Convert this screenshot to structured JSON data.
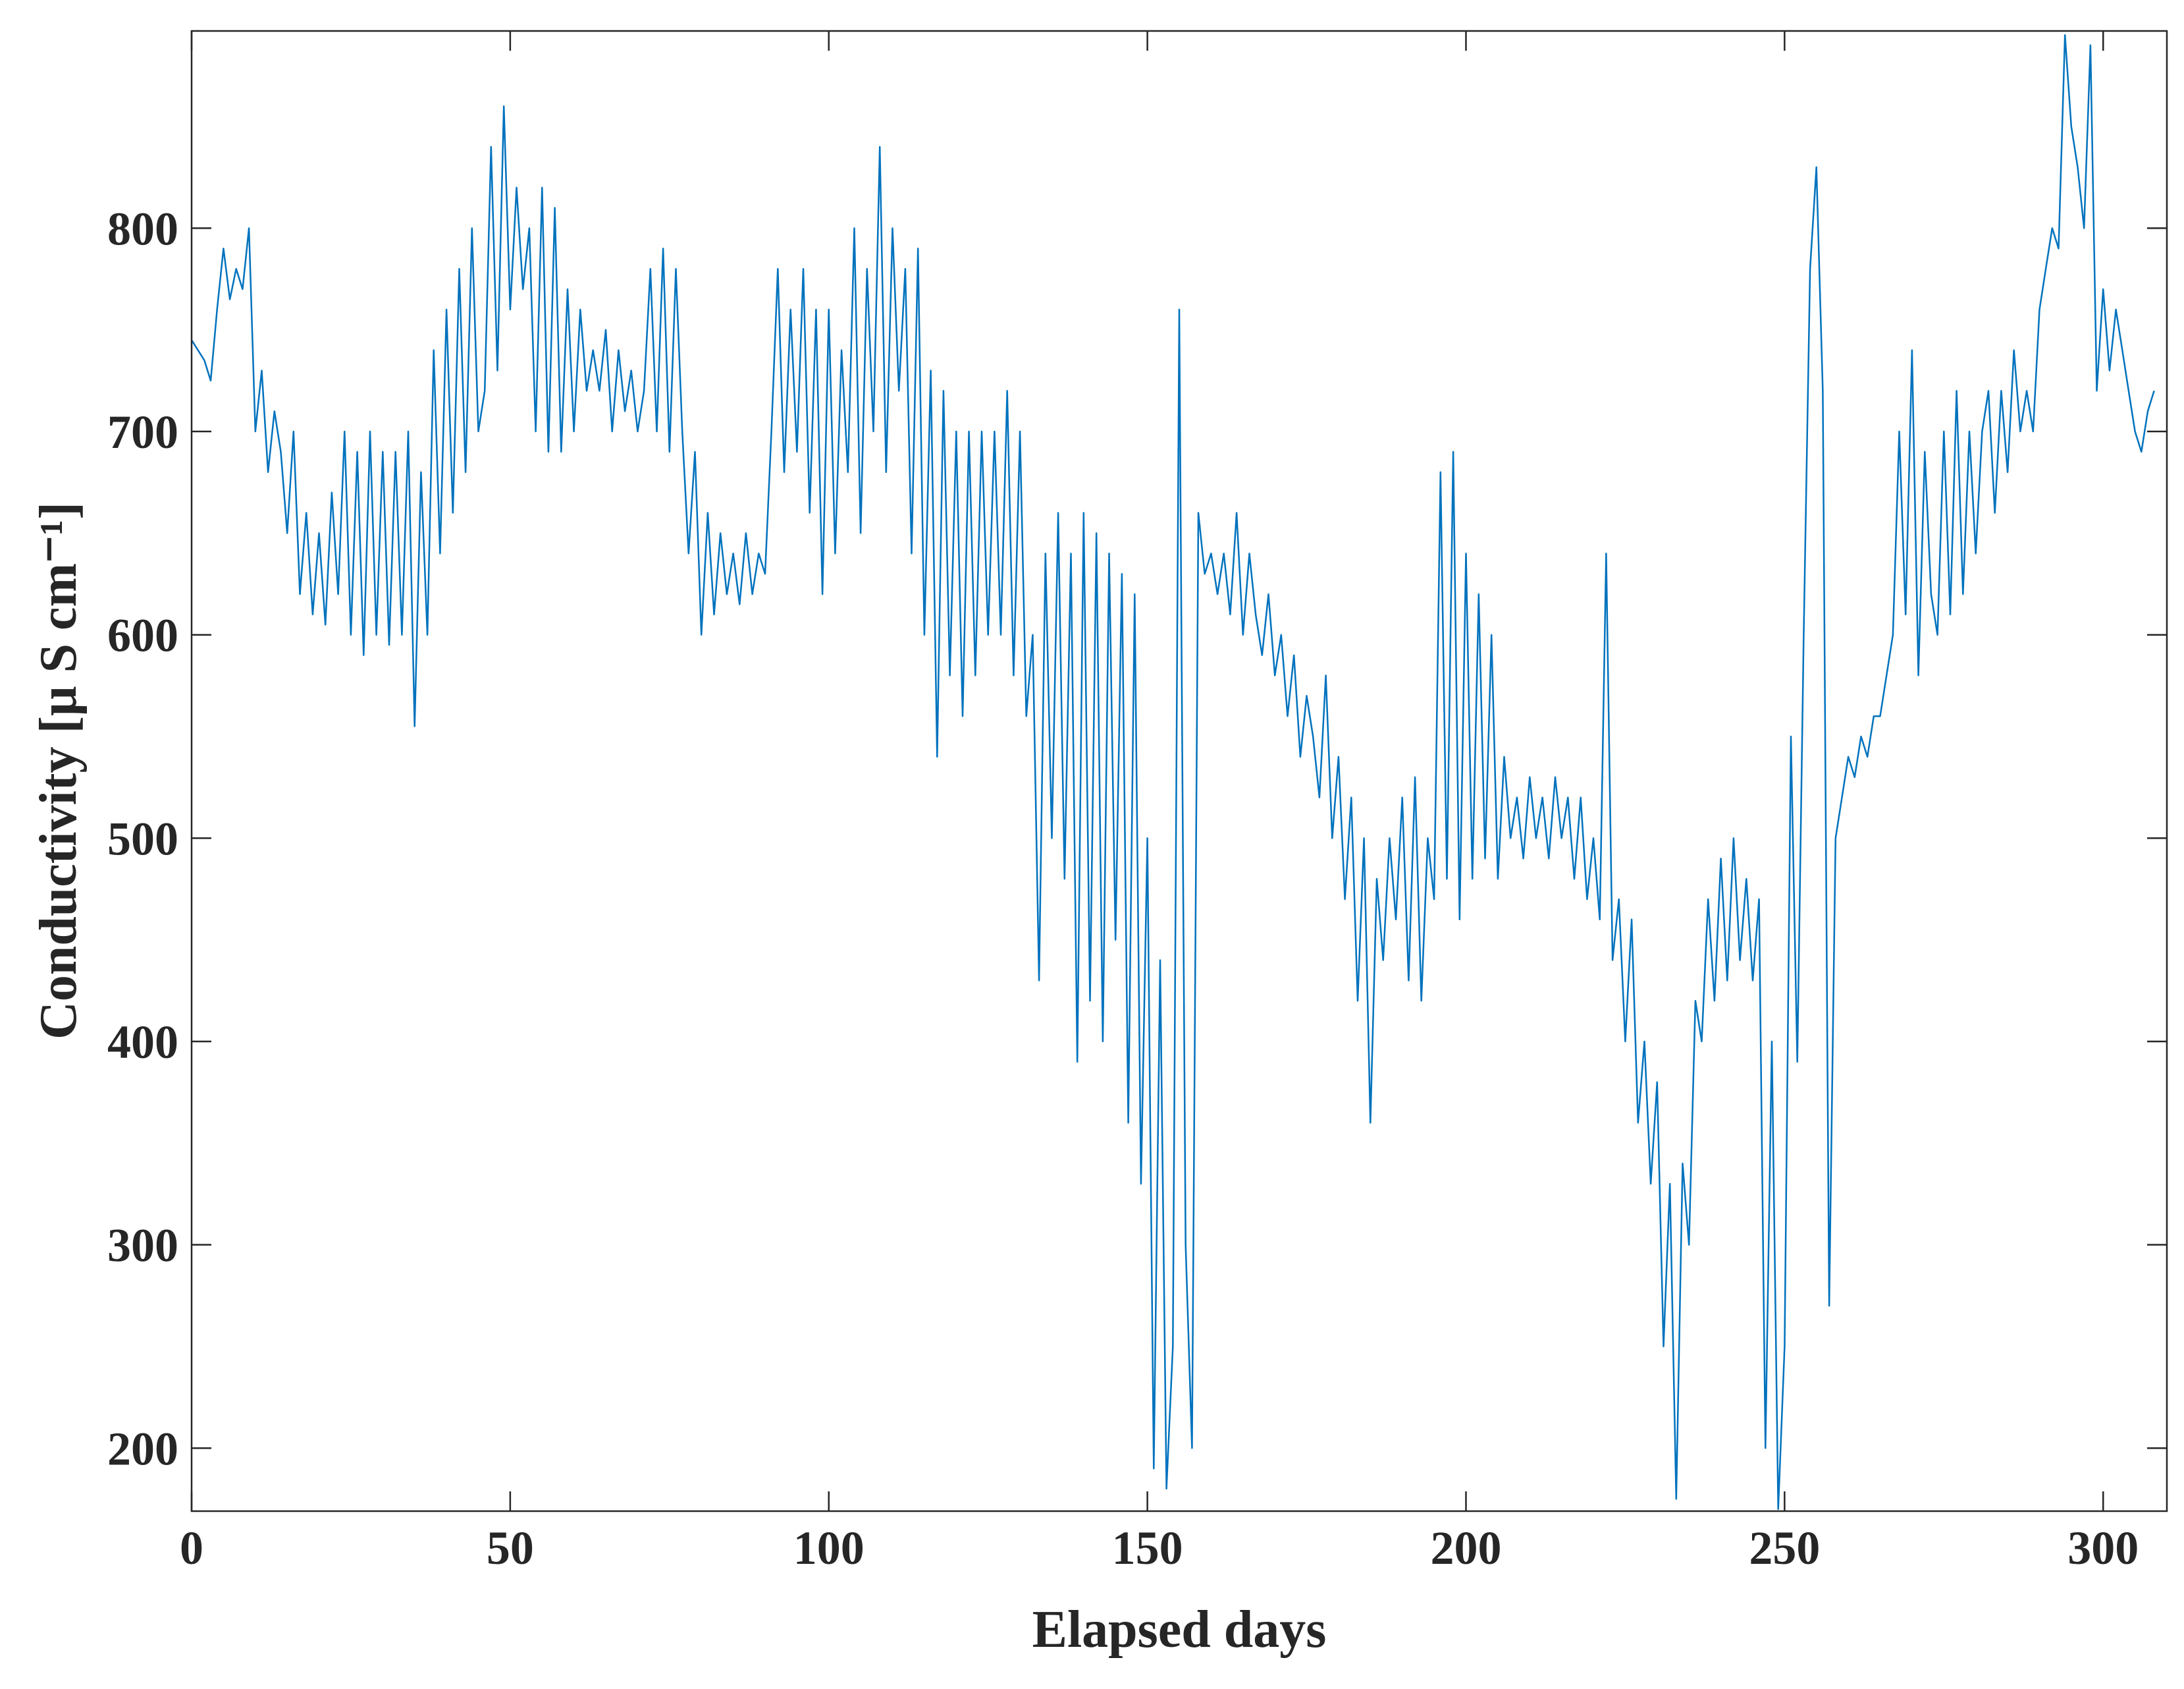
{
  "chart_data": {
    "type": "line",
    "xlabel": "Elapsed days",
    "ylabel": "Conductivity [μ S cm⁻¹]",
    "xlim": [
      0,
      310
    ],
    "ylim": [
      169,
      897
    ],
    "xticks": [
      0,
      50,
      100,
      150,
      200,
      250,
      300
    ],
    "yticks": [
      200,
      300,
      400,
      500,
      600,
      700,
      800
    ],
    "grid": false,
    "series": [
      {
        "name": "Conductivity",
        "color": "#0072BD",
        "x": [
          0,
          1,
          2,
          3,
          4,
          5,
          6,
          7,
          8,
          9,
          10,
          11,
          12,
          13,
          14,
          15,
          16,
          17,
          18,
          19,
          20,
          21,
          22,
          23,
          24,
          25,
          26,
          27,
          28,
          29,
          30,
          31,
          32,
          33,
          34,
          35,
          36,
          37,
          38,
          39,
          40,
          41,
          42,
          43,
          44,
          45,
          46,
          47,
          48,
          49,
          50,
          51,
          52,
          53,
          54,
          55,
          56,
          57,
          58,
          59,
          60,
          61,
          62,
          63,
          64,
          65,
          66,
          67,
          68,
          69,
          70,
          71,
          72,
          73,
          74,
          75,
          76,
          77,
          78,
          79,
          80,
          81,
          82,
          83,
          84,
          85,
          86,
          87,
          88,
          89,
          90,
          91,
          92,
          93,
          94,
          95,
          96,
          97,
          98,
          99,
          100,
          101,
          102,
          103,
          104,
          105,
          106,
          107,
          108,
          109,
          110,
          111,
          112,
          113,
          114,
          115,
          116,
          117,
          118,
          119,
          120,
          121,
          122,
          123,
          124,
          125,
          126,
          127,
          128,
          129,
          130,
          131,
          132,
          133,
          134,
          135,
          136,
          137,
          138,
          139,
          140,
          141,
          142,
          143,
          144,
          145,
          146,
          147,
          148,
          149,
          150,
          151,
          152,
          153,
          154,
          155,
          156,
          157,
          158,
          159,
          160,
          161,
          162,
          163,
          164,
          165,
          166,
          167,
          168,
          169,
          170,
          171,
          172,
          173,
          174,
          175,
          176,
          177,
          178,
          179,
          180,
          181,
          182,
          183,
          184,
          185,
          186,
          187,
          188,
          189,
          190,
          191,
          192,
          193,
          194,
          195,
          196,
          197,
          198,
          199,
          200,
          201,
          202,
          203,
          204,
          205,
          206,
          207,
          208,
          209,
          210,
          211,
          212,
          213,
          214,
          215,
          216,
          217,
          218,
          219,
          220,
          221,
          222,
          223,
          224,
          225,
          226,
          227,
          228,
          229,
          230,
          231,
          232,
          233,
          234,
          235,
          236,
          237,
          238,
          239,
          240,
          241,
          242,
          243,
          244,
          245,
          246,
          247,
          248,
          249,
          250,
          251,
          252,
          253,
          254,
          255,
          256,
          257,
          258,
          259,
          260,
          261,
          262,
          263,
          264,
          265,
          266,
          267,
          268,
          269,
          270,
          271,
          272,
          273,
          274,
          275,
          276,
          277,
          278,
          279,
          280,
          281,
          282,
          283,
          284,
          285,
          286,
          287,
          288,
          289,
          290,
          291,
          292,
          293,
          294,
          295,
          296,
          297,
          298,
          299,
          300,
          301,
          302,
          303,
          304,
          305,
          306,
          307,
          308
        ],
        "values": [
          745,
          740,
          735,
          725,
          760,
          790,
          765,
          780,
          770,
          800,
          700,
          730,
          680,
          710,
          690,
          650,
          700,
          620,
          660,
          610,
          650,
          605,
          670,
          620,
          700,
          600,
          690,
          590,
          700,
          600,
          690,
          595,
          690,
          600,
          700,
          555,
          680,
          600,
          740,
          640,
          760,
          660,
          780,
          680,
          800,
          700,
          720,
          840,
          730,
          860,
          760,
          820,
          770,
          800,
          700,
          820,
          690,
          810,
          690,
          770,
          700,
          760,
          720,
          740,
          720,
          750,
          700,
          740,
          710,
          730,
          700,
          720,
          780,
          700,
          790,
          690,
          780,
          700,
          640,
          690,
          600,
          660,
          610,
          650,
          620,
          640,
          615,
          650,
          620,
          640,
          630,
          700,
          780,
          680,
          760,
          690,
          780,
          660,
          760,
          620,
          760,
          640,
          740,
          680,
          800,
          650,
          780,
          700,
          840,
          680,
          800,
          720,
          780,
          640,
          790,
          600,
          730,
          540,
          720,
          580,
          700,
          560,
          700,
          580,
          700,
          600,
          700,
          600,
          720,
          580,
          700,
          560,
          600,
          430,
          640,
          500,
          660,
          480,
          640,
          390,
          660,
          420,
          650,
          400,
          640,
          450,
          630,
          360,
          620,
          330,
          500,
          190,
          440,
          180,
          250,
          760,
          300,
          200,
          660,
          630,
          640,
          620,
          640,
          610,
          660,
          600,
          640,
          610,
          590,
          620,
          580,
          600,
          560,
          590,
          540,
          570,
          550,
          520,
          580,
          500,
          540,
          470,
          520,
          420,
          500,
          360,
          480,
          440,
          500,
          460,
          520,
          430,
          530,
          420,
          500,
          470,
          680,
          480,
          690,
          460,
          640,
          480,
          620,
          490,
          600,
          480,
          540,
          500,
          520,
          490,
          530,
          500,
          520,
          490,
          530,
          500,
          520,
          480,
          520,
          470,
          500,
          460,
          640,
          440,
          470,
          400,
          460,
          360,
          400,
          330,
          380,
          250,
          330,
          175,
          340,
          300,
          420,
          400,
          470,
          420,
          490,
          430,
          500,
          440,
          480,
          430,
          470,
          200,
          400,
          170,
          250,
          550,
          390,
          600,
          780,
          830,
          720,
          270,
          500,
          520,
          540,
          530,
          550,
          540,
          560,
          560,
          580,
          600,
          700,
          610,
          740,
          580,
          690,
          620,
          600,
          700,
          610,
          720,
          620,
          700,
          640,
          700,
          720,
          660,
          720,
          680,
          740,
          700,
          720,
          700,
          760,
          780,
          800,
          790,
          895,
          850,
          830,
          800,
          890,
          720,
          770,
          730,
          760,
          740,
          720,
          700,
          690,
          710,
          720
        ]
      }
    ]
  }
}
